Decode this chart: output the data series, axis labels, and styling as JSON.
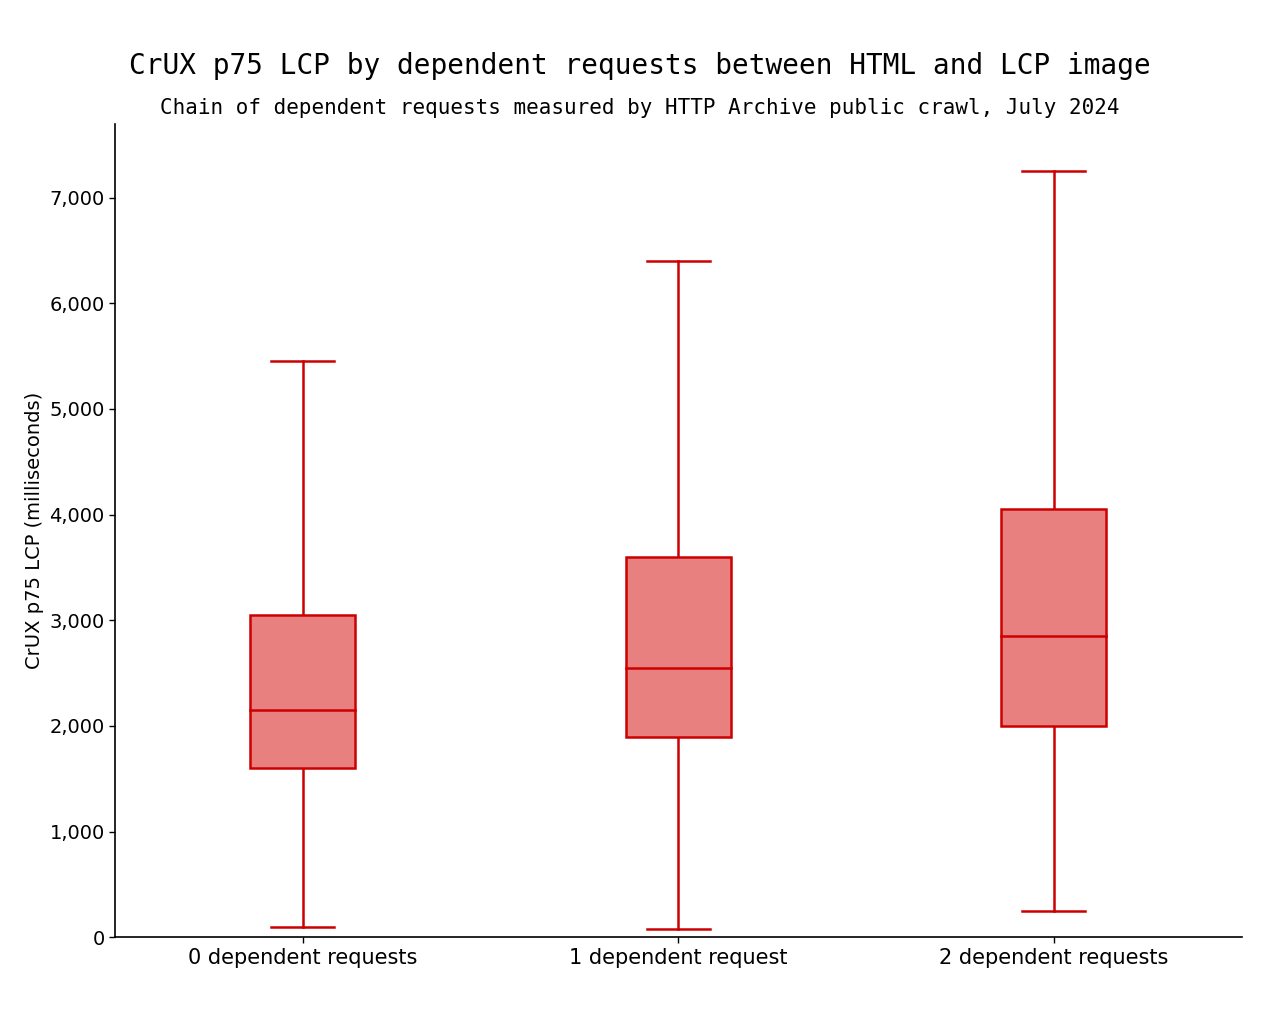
{
  "title": "CrUX p75 LCP by dependent requests between HTML and LCP image",
  "subtitle": "Chain of dependent requests measured by HTTP Archive public crawl, July 2024",
  "ylabel": "CrUX p75 LCP (milliseconds)",
  "categories": [
    "0 dependent requests",
    "1 dependent request",
    "2 dependent requests"
  ],
  "boxes": [
    {
      "whisker_low": 100,
      "q1": 1600,
      "median": 2150,
      "q3": 3050,
      "whisker_high": 5450
    },
    {
      "whisker_low": 75,
      "q1": 1900,
      "median": 2550,
      "q3": 3600,
      "whisker_high": 6400
    },
    {
      "whisker_low": 250,
      "q1": 2000,
      "median": 2850,
      "q3": 4050,
      "whisker_high": 7250
    }
  ],
  "box_color": "#e88080",
  "box_edge_color": "#cc0000",
  "median_color": "#cc0000",
  "whisker_color": "#cc0000",
  "cap_color": "#cc0000",
  "ylim": [
    0,
    7700
  ],
  "yticks": [
    0,
    1000,
    2000,
    3000,
    4000,
    5000,
    6000,
    7000
  ],
  "box_width": 0.28,
  "linewidth": 1.8,
  "title_fontsize": 20,
  "subtitle_fontsize": 15,
  "ylabel_fontsize": 14,
  "tick_fontsize": 14,
  "xtick_fontsize": 15,
  "background_color": "#ffffff"
}
